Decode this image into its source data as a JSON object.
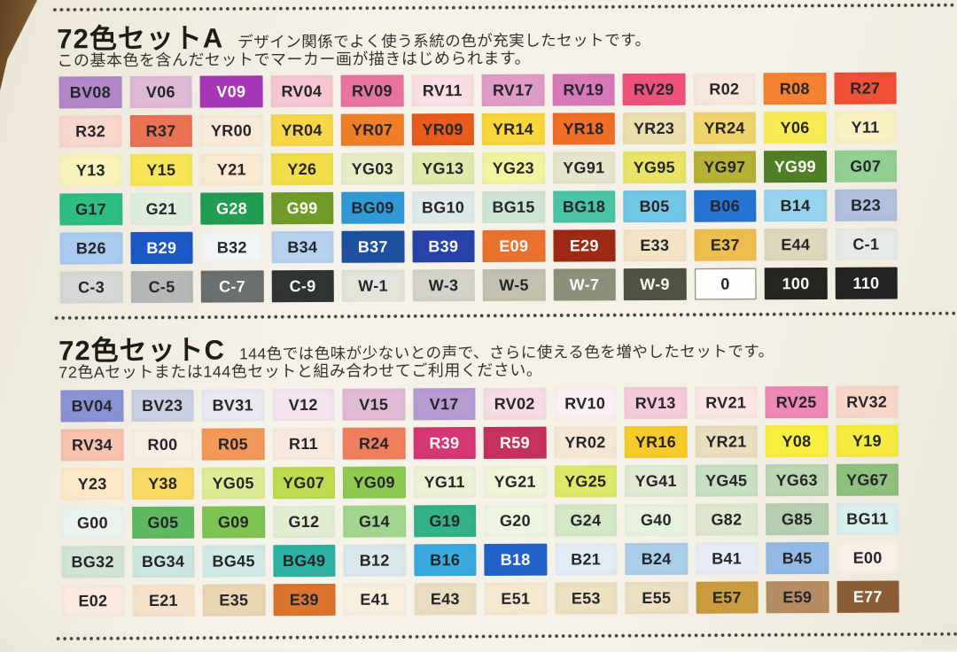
{
  "palette": {
    "paper": "#f4f1e7",
    "ink": "#33332f",
    "dot_line": "#44443e",
    "table_edge_brown": "#7c5730",
    "white_label": "#fbfbf8"
  },
  "sets": [
    {
      "title": "72色セットA",
      "desc_inline": "デザイン関係でよく使う系統の色が充実したセットです。",
      "desc_below": "この基本色を含んだセットでマーカー画が描きはじめられます。",
      "swatches": [
        {
          "label": "BV08",
          "bg": "#b287c7"
        },
        {
          "label": "V06",
          "bg": "#dfb8d6"
        },
        {
          "label": "V09",
          "bg": "#a837b8",
          "fg": "#fbfbf8"
        },
        {
          "label": "RV04",
          "bg": "#f6c7d0"
        },
        {
          "label": "RV09",
          "bg": "#e8739f"
        },
        {
          "label": "RV11",
          "bg": "#f8dfe1"
        },
        {
          "label": "RV17",
          "bg": "#df9cc7"
        },
        {
          "label": "RV19",
          "bg": "#d779b9"
        },
        {
          "label": "RV29",
          "bg": "#f0517a"
        },
        {
          "label": "R02",
          "bg": "#f6e7dc"
        },
        {
          "label": "R08",
          "bg": "#f58232"
        },
        {
          "label": "R27",
          "bg": "#f04f38"
        },
        {
          "label": "R32",
          "bg": "#f8d8cd"
        },
        {
          "label": "R37",
          "bg": "#ea7356"
        },
        {
          "label": "YR00",
          "bg": "#f8ead8"
        },
        {
          "label": "YR04",
          "bg": "#f8d64a"
        },
        {
          "label": "YR07",
          "bg": "#f07e26"
        },
        {
          "label": "YR09",
          "bg": "#e75b1c"
        },
        {
          "label": "YR14",
          "bg": "#f6d63a"
        },
        {
          "label": "YR18",
          "bg": "#f06e28"
        },
        {
          "label": "YR23",
          "bg": "#ebdfae"
        },
        {
          "label": "YR24",
          "bg": "#eed46a"
        },
        {
          "label": "Y06",
          "bg": "#f8ec55"
        },
        {
          "label": "Y11",
          "bg": "#f8f0c2"
        },
        {
          "label": "Y13",
          "bg": "#f6f2b8"
        },
        {
          "label": "Y15",
          "bg": "#f8e556"
        },
        {
          "label": "Y21",
          "bg": "#f8ead0"
        },
        {
          "label": "Y26",
          "bg": "#f2de4a"
        },
        {
          "label": "YG03",
          "bg": "#e9edc5"
        },
        {
          "label": "YG13",
          "bg": "#dfe9ab"
        },
        {
          "label": "YG23",
          "bg": "#f0f49e"
        },
        {
          "label": "YG91",
          "bg": "#e6e4cd"
        },
        {
          "label": "YG95",
          "bg": "#e9e466"
        },
        {
          "label": "YG97",
          "bg": "#b5b134"
        },
        {
          "label": "YG99",
          "bg": "#507f26",
          "fg": "#fbfbf8"
        },
        {
          "label": "G07",
          "bg": "#92d092"
        },
        {
          "label": "G17",
          "bg": "#2ebd82"
        },
        {
          "label": "G21",
          "bg": "#deedde"
        },
        {
          "label": "G28",
          "bg": "#219c53",
          "fg": "#fbfbf8"
        },
        {
          "label": "G99",
          "bg": "#719c29",
          "fg": "#fbfbf8"
        },
        {
          "label": "BG09",
          "bg": "#319ad6"
        },
        {
          "label": "BG10",
          "bg": "#dee9e9"
        },
        {
          "label": "BG15",
          "bg": "#cee5d6"
        },
        {
          "label": "BG18",
          "bg": "#4ac4a4"
        },
        {
          "label": "B05",
          "bg": "#72c6e6"
        },
        {
          "label": "B06",
          "bg": "#2674d4"
        },
        {
          "label": "B14",
          "bg": "#96d4ee"
        },
        {
          "label": "B23",
          "bg": "#b2c0e0"
        },
        {
          "label": "B26",
          "bg": "#aacaee"
        },
        {
          "label": "B29",
          "bg": "#1c58c6",
          "fg": "#fbfbf8"
        },
        {
          "label": "B32",
          "bg": "#f0f4f4"
        },
        {
          "label": "B34",
          "bg": "#b6d1f0"
        },
        {
          "label": "B37",
          "bg": "#1d51a0",
          "fg": "#fbfbf8"
        },
        {
          "label": "B39",
          "bg": "#2743aa",
          "fg": "#fbfbf8"
        },
        {
          "label": "E09",
          "bg": "#ea722e",
          "fg": "#fbfbf8"
        },
        {
          "label": "E29",
          "bg": "#9e2a15",
          "fg": "#fbfbf8"
        },
        {
          "label": "E33",
          "bg": "#f4e4c6"
        },
        {
          "label": "E37",
          "bg": "#ecbe4e"
        },
        {
          "label": "E44",
          "bg": "#dfd6be"
        },
        {
          "label": "C-1",
          "bg": "#e6eae6"
        },
        {
          "label": "C-3",
          "bg": "#d6d8d6"
        },
        {
          "label": "C-5",
          "bg": "#b5b8b7"
        },
        {
          "label": "C-7",
          "bg": "#6a706e",
          "fg": "#fbfbf8"
        },
        {
          "label": "C-9",
          "bg": "#303432",
          "fg": "#fbfbf8"
        },
        {
          "label": "W-1",
          "bg": "#e4e3dc"
        },
        {
          "label": "W-3",
          "bg": "#d4d3c8"
        },
        {
          "label": "W-5",
          "bg": "#c2c1b0"
        },
        {
          "label": "W-7",
          "bg": "#8d907d",
          "fg": "#fbfbf8"
        },
        {
          "label": "W-9",
          "bg": "#505344",
          "fg": "#fbfbf8"
        },
        {
          "label": "0",
          "bg": "#fdfdfb",
          "border": true
        },
        {
          "label": "100",
          "bg": "#252621",
          "fg": "#fbfbf8"
        },
        {
          "label": "110",
          "bg": "#212421",
          "fg": "#fbfbf8"
        }
      ]
    },
    {
      "title": "72色セットC",
      "desc_inline": "144色では色味が少ないとの声で、さらに使える色を増やしたセットです。",
      "desc_below": "72色Aセットまたは144色セットと組み合わせてご利用ください。",
      "swatches": [
        {
          "label": "BV04",
          "bg": "#8a92d6"
        },
        {
          "label": "BV23",
          "bg": "#cbd0e0"
        },
        {
          "label": "BV31",
          "bg": "#e8e8f1"
        },
        {
          "label": "V12",
          "bg": "#f2e3ee"
        },
        {
          "label": "V15",
          "bg": "#e1bad6"
        },
        {
          "label": "V17",
          "bg": "#b69cd0"
        },
        {
          "label": "RV02",
          "bg": "#f6dde4"
        },
        {
          "label": "RV10",
          "bg": "#faf0f2"
        },
        {
          "label": "RV13",
          "bg": "#f6cada"
        },
        {
          "label": "RV21",
          "bg": "#fae4e4"
        },
        {
          "label": "RV25",
          "bg": "#ee88b6"
        },
        {
          "label": "RV32",
          "bg": "#f8d7ca"
        },
        {
          "label": "RV34",
          "bg": "#f7c2ae"
        },
        {
          "label": "R00",
          "bg": "#f6eee2"
        },
        {
          "label": "R05",
          "bg": "#f29858"
        },
        {
          "label": "R11",
          "bg": "#f9e9dc"
        },
        {
          "label": "R24",
          "bg": "#f07f5e"
        },
        {
          "label": "R39",
          "bg": "#d63674",
          "fg": "#fbfbf8"
        },
        {
          "label": "R59",
          "bg": "#c6315e",
          "fg": "#fbfbf8"
        },
        {
          "label": "YR02",
          "bg": "#f4e8d4"
        },
        {
          "label": "YR16",
          "bg": "#f6ca2b"
        },
        {
          "label": "YR21",
          "bg": "#e9debe"
        },
        {
          "label": "Y08",
          "bg": "#f8ef3e"
        },
        {
          "label": "Y19",
          "bg": "#f6eb40"
        },
        {
          "label": "Y23",
          "bg": "#fae8c6"
        },
        {
          "label": "Y38",
          "bg": "#f8da65"
        },
        {
          "label": "YG05",
          "bg": "#deec96"
        },
        {
          "label": "YG07",
          "bg": "#bedb50"
        },
        {
          "label": "YG09",
          "bg": "#8eca50"
        },
        {
          "label": "YG11",
          "bg": "#eaf1d4"
        },
        {
          "label": "YG21",
          "bg": "#eff4d6"
        },
        {
          "label": "YG25",
          "bg": "#dde969"
        },
        {
          "label": "YG41",
          "bg": "#deead4"
        },
        {
          "label": "YG45",
          "bg": "#c7dfc2"
        },
        {
          "label": "YG63",
          "bg": "#bad6b2"
        },
        {
          "label": "YG67",
          "bg": "#8ec07e"
        },
        {
          "label": "G00",
          "bg": "#eaf2ec"
        },
        {
          "label": "G05",
          "bg": "#5eba5e"
        },
        {
          "label": "G09",
          "bg": "#7ec453"
        },
        {
          "label": "G12",
          "bg": "#e2eed2"
        },
        {
          "label": "G14",
          "bg": "#a2d68e"
        },
        {
          "label": "G19",
          "bg": "#32b286"
        },
        {
          "label": "G20",
          "bg": "#ecf4e2"
        },
        {
          "label": "G24",
          "bg": "#d4e8c6"
        },
        {
          "label": "G40",
          "bg": "#e6f1de"
        },
        {
          "label": "G82",
          "bg": "#dee8ce"
        },
        {
          "label": "G85",
          "bg": "#b6ceb0"
        },
        {
          "label": "BG11",
          "bg": "#daeeee"
        },
        {
          "label": "BG32",
          "bg": "#d1e4d6"
        },
        {
          "label": "BG34",
          "bg": "#cde6e0"
        },
        {
          "label": "BG45",
          "bg": "#d0eae4"
        },
        {
          "label": "BG49",
          "bg": "#2eb2a2"
        },
        {
          "label": "B12",
          "bg": "#dae8ec"
        },
        {
          "label": "B16",
          "bg": "#3aaade"
        },
        {
          "label": "B18",
          "bg": "#2262ca",
          "fg": "#fbfbf8"
        },
        {
          "label": "B21",
          "bg": "#e2ecf4"
        },
        {
          "label": "B24",
          "bg": "#aaceea"
        },
        {
          "label": "B41",
          "bg": "#e6ecf6"
        },
        {
          "label": "B45",
          "bg": "#92bae6"
        },
        {
          "label": "E00",
          "bg": "#f8f0e6"
        },
        {
          "label": "E02",
          "bg": "#f8eade"
        },
        {
          "label": "E21",
          "bg": "#f6e2ca"
        },
        {
          "label": "E35",
          "bg": "#ead6b2"
        },
        {
          "label": "E39",
          "bg": "#da742e"
        },
        {
          "label": "E41",
          "bg": "#f8eede"
        },
        {
          "label": "E43",
          "bg": "#eadec2"
        },
        {
          "label": "E51",
          "bg": "#f6e8ce"
        },
        {
          "label": "E53",
          "bg": "#eee1c2"
        },
        {
          "label": "E55",
          "bg": "#ecdfc4"
        },
        {
          "label": "E57",
          "bg": "#ca9c3e"
        },
        {
          "label": "E59",
          "bg": "#b68d62"
        },
        {
          "label": "E77",
          "bg": "#8c5e36",
          "fg": "#fbfbf8"
        }
      ]
    }
  ]
}
